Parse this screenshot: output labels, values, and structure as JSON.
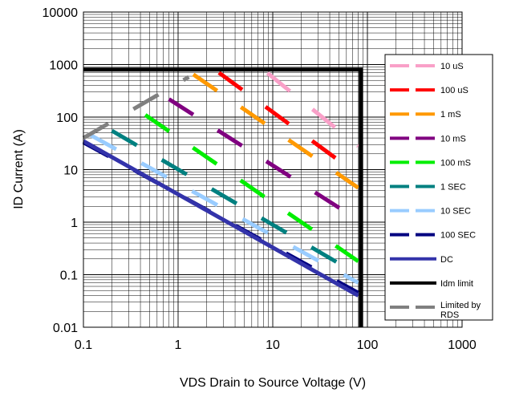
{
  "chart_data": {
    "type": "line",
    "title": "",
    "xlabel": "VDS Drain to Source Voltage (V)",
    "ylabel": "ID Current (A)",
    "x_scale": "log",
    "y_scale": "log",
    "xlim": [
      0.1,
      1000
    ],
    "ylim": [
      0.01,
      10000
    ],
    "x_ticks": [
      "0.1",
      "1",
      "10",
      "100",
      "1000"
    ],
    "y_ticks": [
      "0.01",
      "0.1",
      "1",
      "10",
      "100",
      "1000",
      "10000"
    ],
    "grid": true,
    "legend_position": "right",
    "series": [
      {
        "name": "10 uS",
        "color": "#f9a0c8",
        "dash": "dashed",
        "points": [
          [
            8.8,
            690
          ],
          [
            80,
            28
          ]
        ]
      },
      {
        "name": "100 uS",
        "color": "#ff0000",
        "dash": "dashed",
        "points": [
          [
            2.7,
            700
          ],
          [
            80,
            8
          ]
        ]
      },
      {
        "name": "1 mS",
        "color": "#ff9900",
        "dash": "dashed",
        "points": [
          [
            1.45,
            650
          ],
          [
            80,
            4.5
          ]
        ]
      },
      {
        "name": "10 mS",
        "color": "#800080",
        "dash": "dashed",
        "points": [
          [
            0.8,
            220
          ],
          [
            80,
            1.1
          ]
        ]
      },
      {
        "name": "100 mS",
        "color": "#00ee00",
        "dash": "dashed",
        "points": [
          [
            0.45,
            110
          ],
          [
            80,
            0.18
          ]
        ]
      },
      {
        "name": "1 SEC",
        "color": "#008080",
        "dash": "dashed",
        "points": [
          [
            0.2,
            55
          ],
          [
            80,
            0.1
          ]
        ]
      },
      {
        "name": "10 SEC",
        "color": "#99ccff",
        "dash": "dashed",
        "points": [
          [
            0.12,
            45
          ],
          [
            80,
            0.07
          ]
        ]
      },
      {
        "name": "100 SEC",
        "color": "#000080",
        "dash": "dashed",
        "points": [
          [
            0.1,
            33
          ],
          [
            80,
            0.045
          ]
        ]
      },
      {
        "name": "DC",
        "color": "#3333aa",
        "dash": "solid",
        "points": [
          [
            0.1,
            35
          ],
          [
            80,
            0.04
          ]
        ]
      },
      {
        "name": "Idm limit",
        "color": "#000000",
        "dash": "solid",
        "points": [
          [
            0.1,
            800
          ],
          [
            85,
            800
          ],
          [
            85,
            0.01
          ]
        ]
      },
      {
        "name": "Limited by RDS",
        "color": "#808080",
        "dash": "dashed",
        "points": [
          [
            0.1,
            40
          ],
          [
            1.3,
            580
          ]
        ]
      }
    ]
  }
}
